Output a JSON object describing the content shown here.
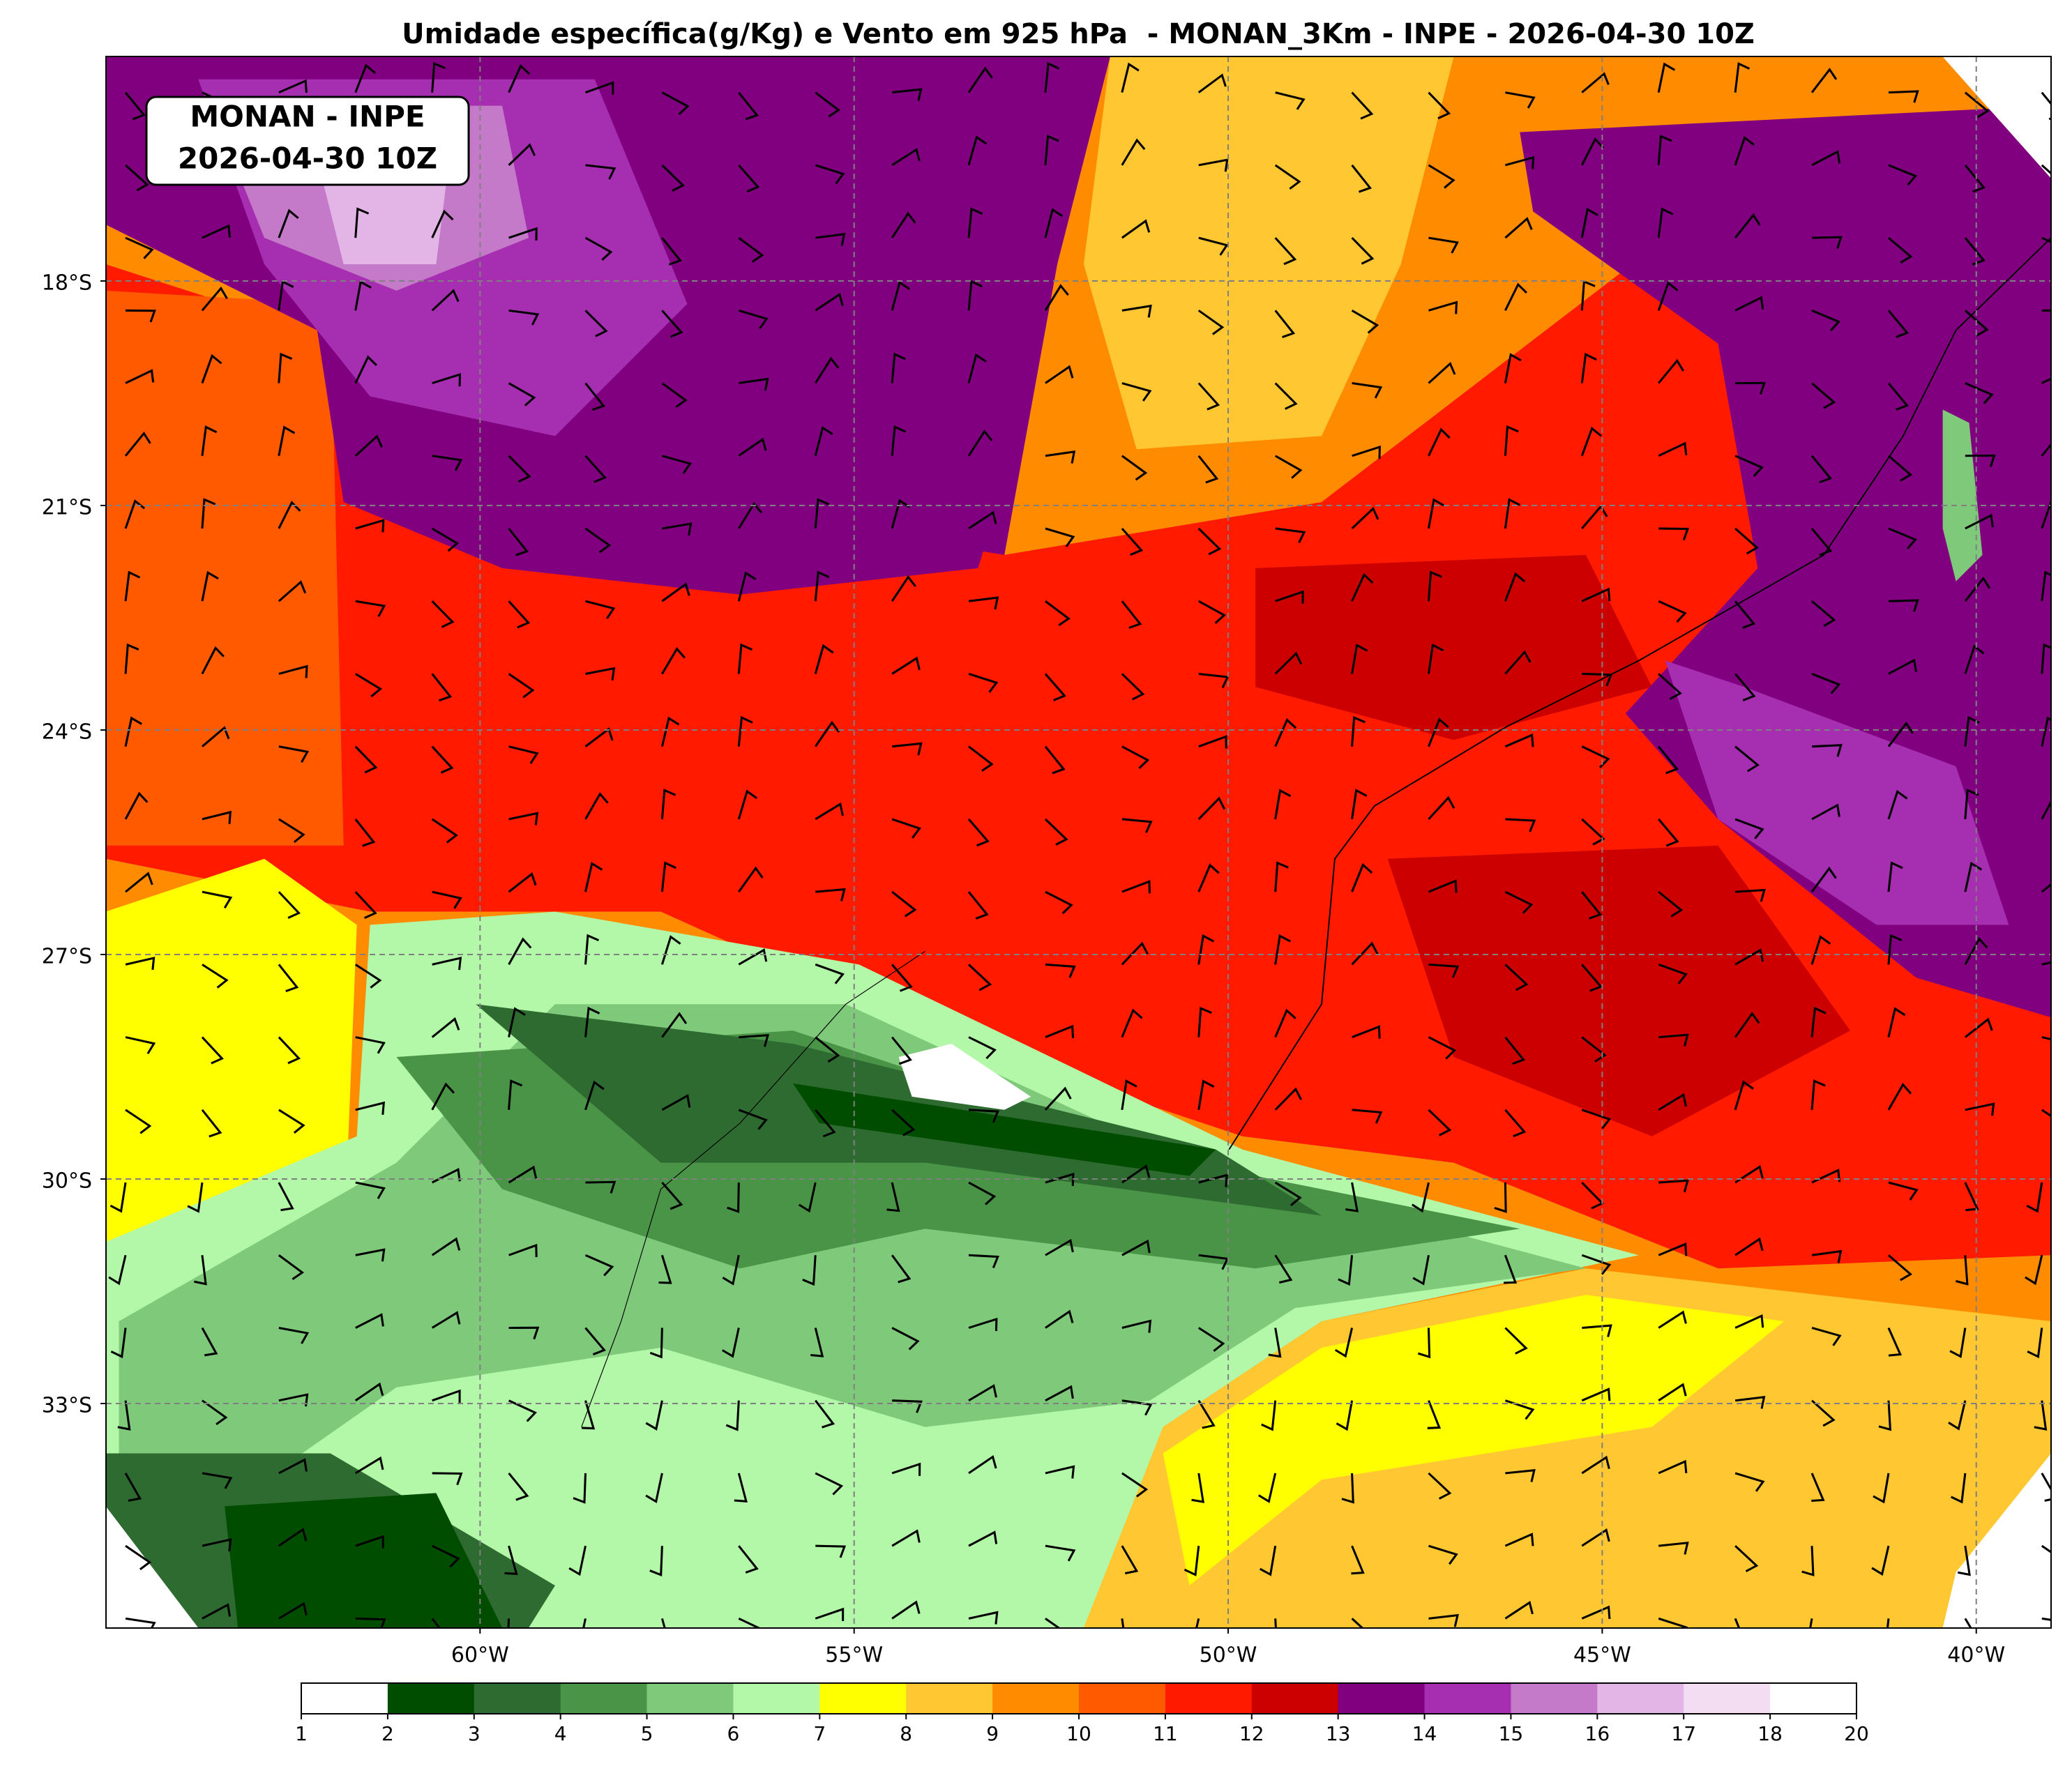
{
  "title": "Umidade específica(g/Kg) e Vento em 925 hPa  - MONAN_3Km - INPE - 2026-04-30 10Z",
  "label_box": [
    "MONAN - INPE",
    "2026-04-30 10Z"
  ],
  "map": {
    "xlim": [
      -65,
      -39
    ],
    "ylim": [
      -36,
      -15
    ],
    "grid": true,
    "lat_ticks": [
      {
        "value": -18,
        "label": "18°S"
      },
      {
        "value": -21,
        "label": "21°S"
      },
      {
        "value": -24,
        "label": "24°S"
      },
      {
        "value": -27,
        "label": "27°S"
      },
      {
        "value": -30,
        "label": "30°S"
      },
      {
        "value": -33,
        "label": "33°S"
      }
    ],
    "lon_ticks": [
      {
        "value": -60,
        "label": "60°W"
      },
      {
        "value": -55,
        "label": "55°W"
      },
      {
        "value": -50,
        "label": "50°W"
      },
      {
        "value": -45,
        "label": "45°W"
      },
      {
        "value": -40,
        "label": "40°W"
      }
    ]
  },
  "colorbar": {
    "boundaries": [
      1,
      2,
      3,
      4,
      5,
      6,
      7,
      8,
      9,
      10,
      11,
      12,
      13,
      14,
      15,
      16,
      17,
      18,
      20
    ],
    "colors": [
      "#ffffff",
      "#004d00",
      "#2e6b30",
      "#4a9448",
      "#7fc97a",
      "#b3f7a8",
      "#ffff00",
      "#ffc832",
      "#ff8c00",
      "#ff5a00",
      "#ff1a00",
      "#cc0000",
      "#800080",
      "#a52fb0",
      "#c47ac8",
      "#e2b5e6",
      "#f3ddf3",
      "#ffffff"
    ]
  }
}
